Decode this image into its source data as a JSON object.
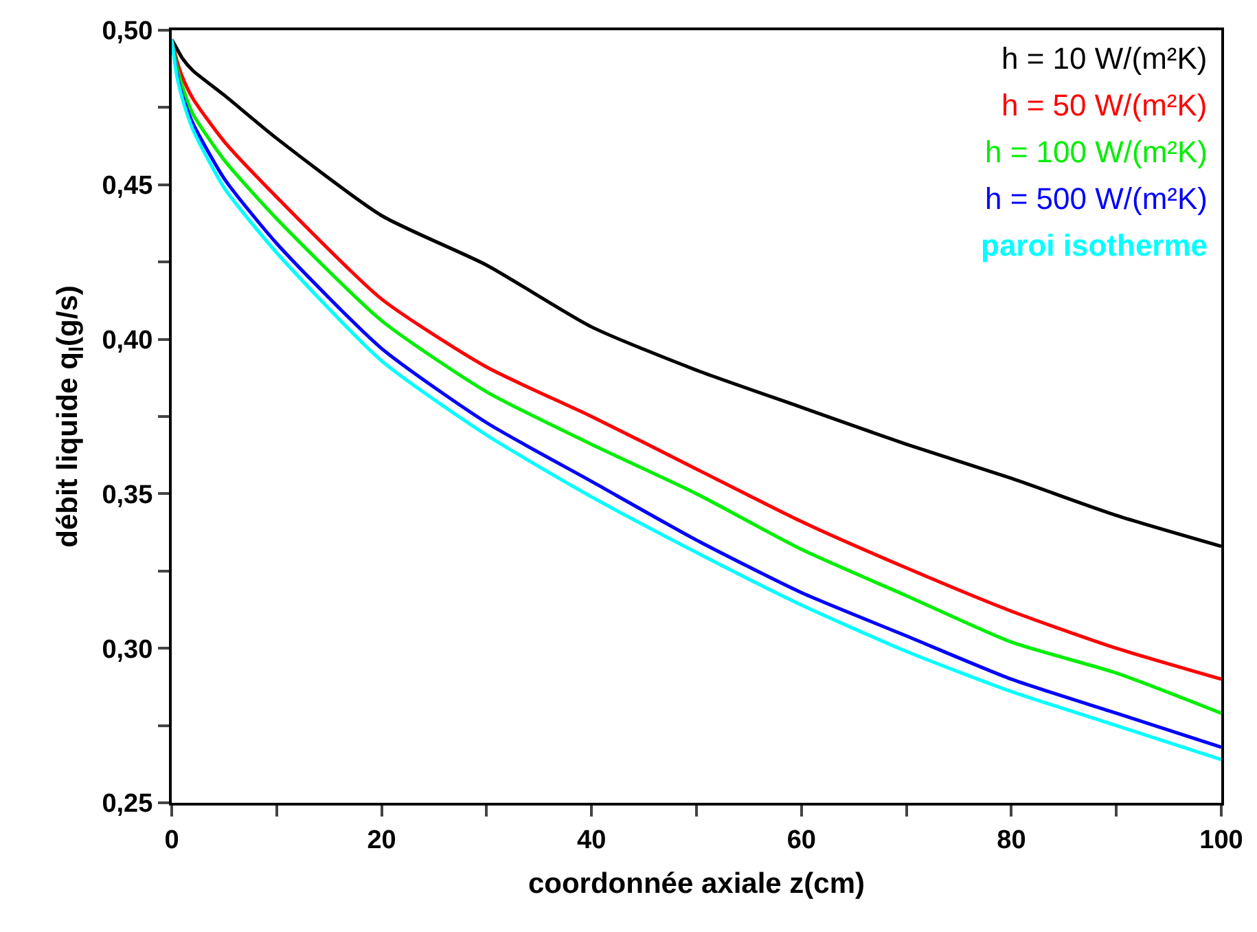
{
  "chart_data": {
    "type": "line",
    "xlabel": "coordonnée axiale z(cm)",
    "ylabel": "débit liquide q$_{l}$(g/s)",
    "x": [
      0,
      0.5,
      1,
      2,
      5,
      10,
      20,
      30,
      40,
      50,
      60,
      70,
      80,
      90,
      100
    ],
    "series": [
      {
        "name": "h = 10 W/(m²K)",
        "color": "#000000",
        "values": [
          0.497,
          0.494,
          0.491,
          0.487,
          0.479,
          0.465,
          0.44,
          0.424,
          0.404,
          0.39,
          0.378,
          0.366,
          0.355,
          0.343,
          0.333
        ]
      },
      {
        "name": "h = 50 W/(m²K)",
        "color": "#ff0000",
        "values": [
          0.497,
          0.49,
          0.485,
          0.478,
          0.464,
          0.446,
          0.413,
          0.391,
          0.375,
          0.358,
          0.341,
          0.326,
          0.312,
          0.3,
          0.29
        ]
      },
      {
        "name": "h = 100 W/(m²K)",
        "color": "#00ee00",
        "values": [
          0.497,
          0.488,
          0.482,
          0.473,
          0.458,
          0.439,
          0.406,
          0.383,
          0.366,
          0.35,
          0.332,
          0.317,
          0.302,
          0.292,
          0.279
        ]
      },
      {
        "name": "h = 500 W/(m²K)",
        "color": "#0000ff",
        "values": [
          0.497,
          0.486,
          0.479,
          0.47,
          0.452,
          0.431,
          0.397,
          0.373,
          0.354,
          0.335,
          0.318,
          0.304,
          0.29,
          0.279,
          0.268
        ]
      },
      {
        "name": "paroi isotherme",
        "color": "#00ffff",
        "values": [
          0.497,
          0.485,
          0.478,
          0.468,
          0.449,
          0.428,
          0.393,
          0.369,
          0.349,
          0.331,
          0.314,
          0.299,
          0.286,
          0.275,
          0.264
        ]
      }
    ],
    "xlim": [
      0,
      100
    ],
    "ylim": [
      0.25,
      0.5
    ],
    "xticks": [
      0,
      {
        "value": 10,
        "label": null
      },
      20,
      {
        "value": 30,
        "label": null
      },
      40,
      {
        "value": 50,
        "label": null
      },
      60,
      {
        "value": 70,
        "label": null
      },
      80,
      {
        "value": 90,
        "label": null
      },
      100
    ],
    "yticks": [
      {
        "value": 0.25,
        "label": "0,25"
      },
      {
        "value": 0.275,
        "label": null
      },
      {
        "value": 0.3,
        "label": "0,30"
      },
      {
        "value": 0.325,
        "label": null
      },
      {
        "value": 0.35,
        "label": "0,35"
      },
      {
        "value": 0.375,
        "label": null
      },
      {
        "value": 0.4,
        "label": "0,40"
      },
      {
        "value": 0.425,
        "label": null
      },
      {
        "value": 0.45,
        "label": "0,45"
      },
      {
        "value": 0.475,
        "label": null
      },
      {
        "value": 0.5,
        "label": "0,50"
      }
    ],
    "grid": false,
    "legend": "top right",
    "line_style": "solid",
    "marker": "none"
  }
}
